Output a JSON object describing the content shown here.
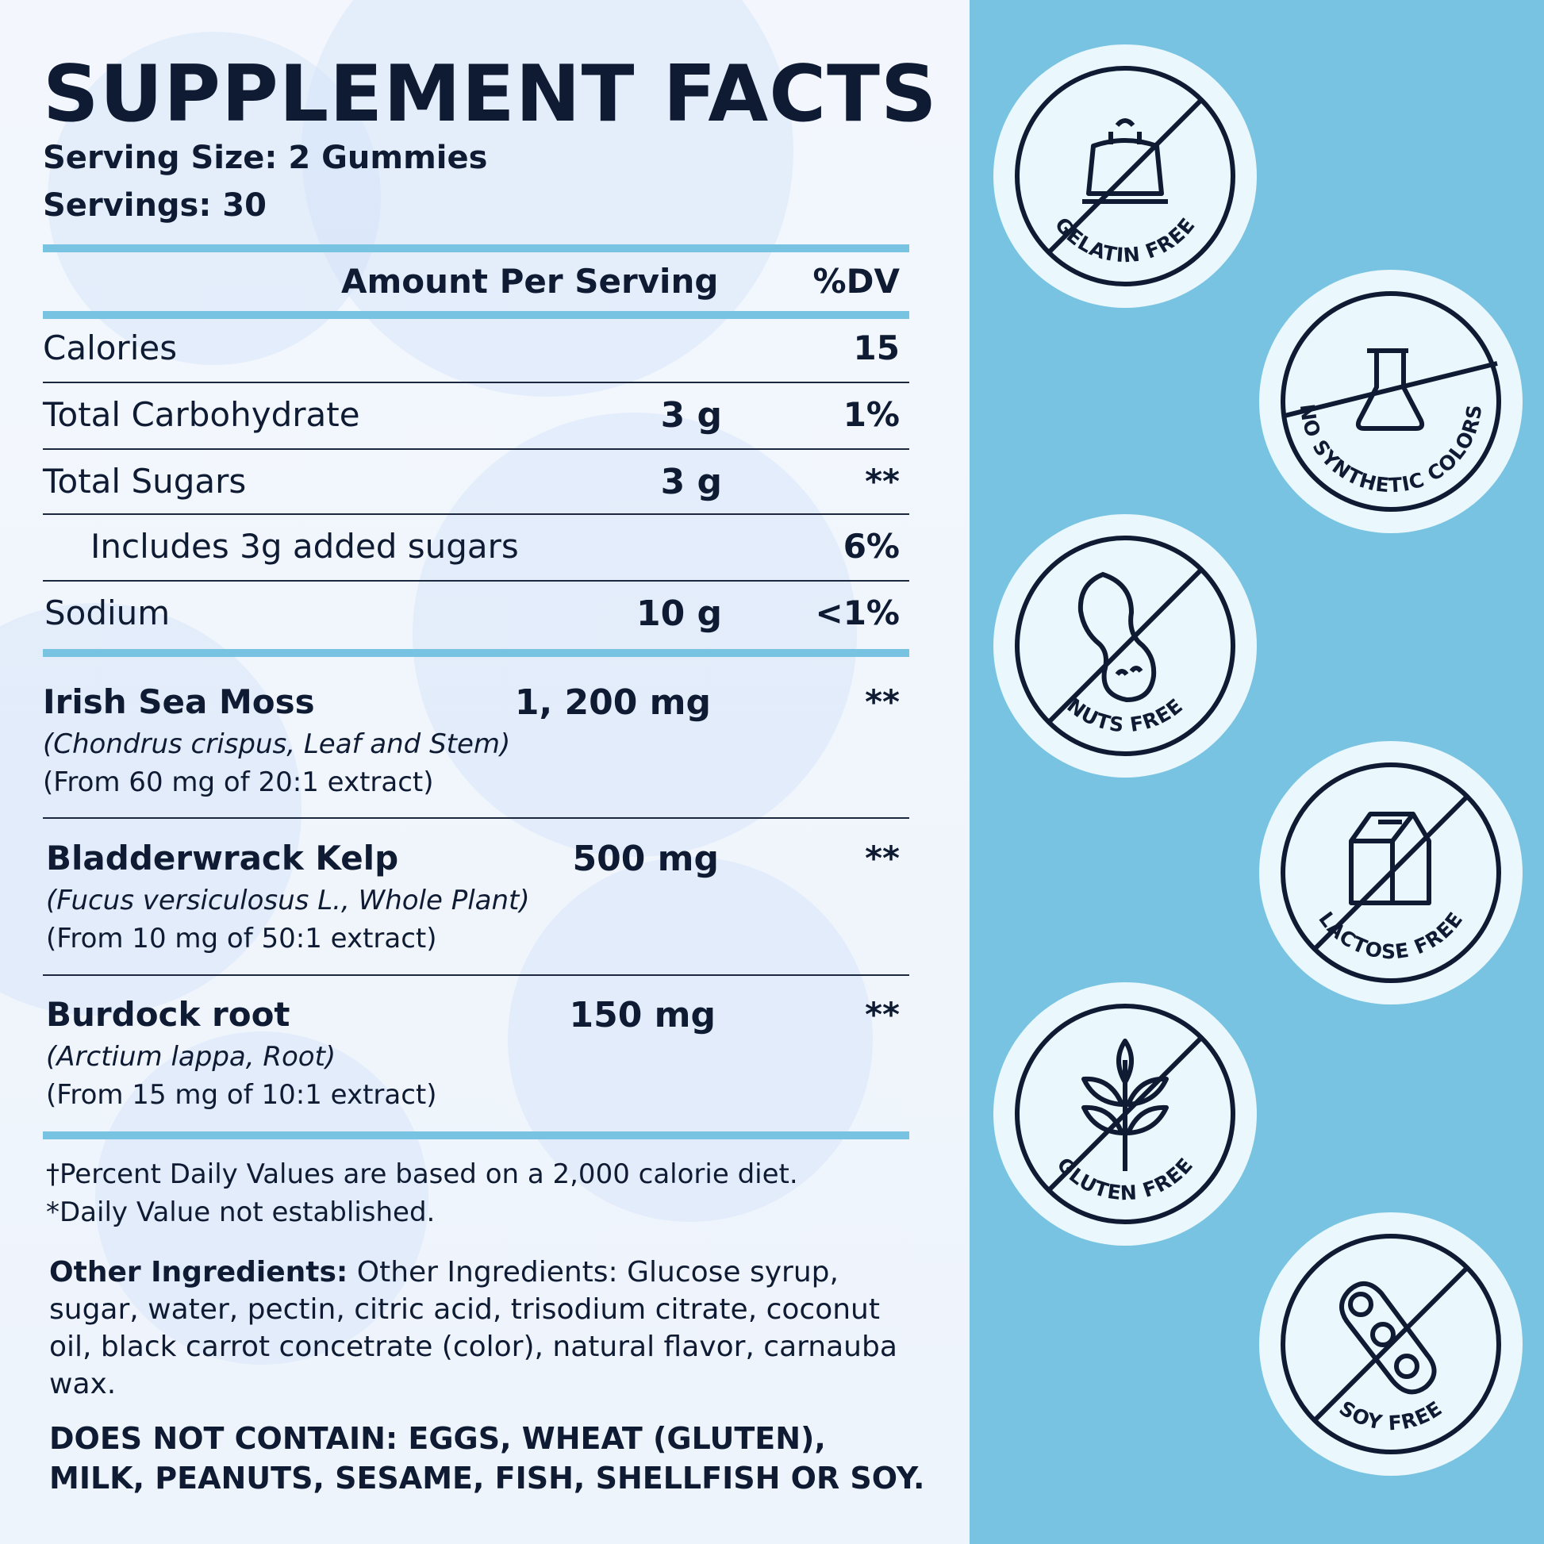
{
  "title": "SUPPLEMENT FACTS",
  "serving_size": "Serving Size: 2 Gummies",
  "servings": "Servings: 30",
  "table_header": {
    "amount": "Amount Per Serving",
    "dv": "%DV"
  },
  "nutrients": [
    {
      "name": "Calories",
      "amount": "",
      "dv": "15"
    },
    {
      "name": "Total Carbohydrate",
      "amount": "3 g",
      "dv": "1%"
    },
    {
      "name": "Total Sugars",
      "amount": "3 g",
      "dv": "**"
    },
    {
      "name": "Includes 3g added sugars",
      "amount": "",
      "dv": "6%"
    },
    {
      "name": "Sodium",
      "amount": "10 g",
      "dv": "<1%"
    }
  ],
  "ingredients": [
    {
      "name": "Irish Sea Moss",
      "amount": "1, 200 mg",
      "dv": "**",
      "latin": "(Chondrus crispus, Leaf and Stem)",
      "extract": "(From 60 mg of 20:1 extract)"
    },
    {
      "name": "Bladderwrack Kelp",
      "amount": "500 mg",
      "dv": "**",
      "latin": "(Fucus versiculosus L., Whole Plant)",
      "extract": "(From 10 mg of 50:1 extract)"
    },
    {
      "name": "Burdock root",
      "amount": "150 mg",
      "dv": "**",
      "latin": "(Arctium lappa, Root)",
      "extract": "(From 15 mg of 10:1 extract)"
    }
  ],
  "footnotes": {
    "dv_note": "†Percent Daily Values are based on a 2,000 calorie diet.",
    "not_established": "*Daily Value not established."
  },
  "other_ingredients": {
    "label": "Other Ingredients:",
    "text": " Other Ingredients: Glucose syrup, sugar, water, pectin, citric acid, trisodium citrate, coconut oil, black carrot concetrate (color), natural flavor, carnauba wax."
  },
  "does_not_contain": "DOES NOT CONTAIN: EGGS, WHEAT (GLUTEN), MILK, PEANUTS, SESAME, FISH, SHELLFISH OR SOY.",
  "badges": [
    {
      "label": "GELATIN FREE",
      "icon": "gelatin-icon"
    },
    {
      "label": "NO SYNTHETIC COLORS",
      "icon": "flask-icon"
    },
    {
      "label": "NUTS FREE",
      "icon": "peanut-icon"
    },
    {
      "label": "LACTOSE FREE",
      "icon": "milk-carton-icon"
    },
    {
      "label": "GLUTEN FREE",
      "icon": "wheat-icon"
    },
    {
      "label": "SOY FREE",
      "icon": "soybean-icon"
    }
  ],
  "colors": {
    "accent": "#78c3e2",
    "ink": "#0e1b33",
    "badge_fill": "#eaf7fc"
  }
}
